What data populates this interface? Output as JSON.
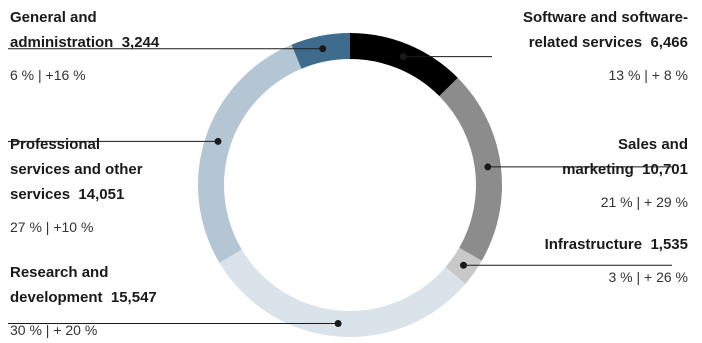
{
  "chart_data": {
    "type": "pie",
    "donut": true,
    "unit_share": "%",
    "slices": [
      {
        "label": "Software and software-related services",
        "label_lines": [
          "Software and software-",
          "related services"
        ],
        "value": 6466,
        "value_text": "6,466",
        "share": 13,
        "change": 8,
        "stats_text": "13 % | + 8 %",
        "color": "#000000"
      },
      {
        "label": "Sales and marketing",
        "label_lines": [
          "Sales and",
          "marketing"
        ],
        "value": 10701,
        "value_text": "10,701",
        "share": 21,
        "change": 29,
        "stats_text": "21 % | + 29 %",
        "color": "#8c8c8c"
      },
      {
        "label": "Infrastructure",
        "label_lines": [
          "Infrastructure"
        ],
        "value": 1535,
        "value_text": "1,535",
        "share": 3,
        "change": 26,
        "stats_text": "3 % | + 26 %",
        "color": "#c8c8c8"
      },
      {
        "label": "Research and development",
        "label_lines": [
          "Research and",
          "development"
        ],
        "value": 15547,
        "value_text": "15,547",
        "share": 30,
        "change": 20,
        "stats_text": "30 % | + 20 %",
        "color": "#dbe3ea"
      },
      {
        "label": "Professional services and other services",
        "label_lines": [
          "Professional",
          "services and other",
          "services"
        ],
        "value": 14051,
        "value_text": "14,051",
        "share": 27,
        "change": 10,
        "stats_text": "27 % | +10 %",
        "color": "#b4c6d3"
      },
      {
        "label": "General and administration",
        "label_lines": [
          "General and",
          "administration"
        ],
        "value": 3244,
        "value_text": "3,244",
        "share": 6,
        "change": 16,
        "stats_text": "6 % | +16 %",
        "color": "#3f6c8d"
      }
    ]
  }
}
